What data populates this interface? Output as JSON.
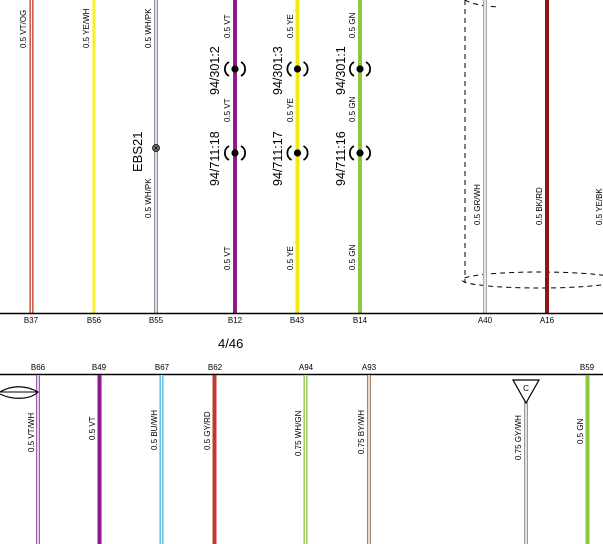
{
  "top": {
    "wires": [
      {
        "id": "b37",
        "label": "0.5 VT/OG",
        "pin": "B37",
        "color": "#c0392b",
        "stripe": "#ffffff"
      },
      {
        "id": "b56",
        "label": "0.5 YE/WH",
        "pin": "B56",
        "color": "#f7ee2e",
        "stripe": ""
      },
      {
        "id": "b55",
        "label_top": "0.5 WH/PK",
        "label_bottom": "0.5 WH/PK",
        "pin": "B55",
        "color": "#9a8aa5",
        "stripe": "#ffffff",
        "splice": "EBS21"
      },
      {
        "id": "b12",
        "label_top": "0.5 VT",
        "label_mid": "0.5 VT",
        "label_bottom": "0.5 VT",
        "pin": "B12",
        "color": "#8e1a8e",
        "conn_upper": "94/301:2",
        "conn_lower": "94/711:18"
      },
      {
        "id": "b43",
        "label_top": "0.5 YE",
        "label_mid": "0.5 YE",
        "label_bottom": "0.5 YE",
        "pin": "B43",
        "color": "#f2ea10",
        "conn_upper": "94/301:3",
        "conn_lower": "94/711:17"
      },
      {
        "id": "b14",
        "label_top": "0.5 GN",
        "label_mid": "0.5 GN",
        "label_bottom": "0.5 GN",
        "pin": "B14",
        "color": "#8dc63f",
        "conn_upper": "94/301:1",
        "conn_lower": "94/711:16"
      },
      {
        "id": "a40",
        "label": "0.5 GR/WH",
        "pin": "A40",
        "color": "#aaaaaa",
        "stripe": "#ffffff"
      },
      {
        "id": "a16",
        "label": "0.5 BK/RD",
        "pin": "A16",
        "color": "#8b1515",
        "stripe": ""
      },
      {
        "id": "a15",
        "label": "0.5 YE/BK",
        "pin": "",
        "color": "#f2ea10",
        "stripe": ""
      }
    ],
    "page_ref": "4/46"
  },
  "bottom": {
    "wires": [
      {
        "id": "b66",
        "label": "0.5 VT/WH",
        "pin": "B66",
        "color": "#a05ab0",
        "stripe": "#ffffff"
      },
      {
        "id": "b49",
        "label": "0.5 VT",
        "pin": "B49",
        "color": "#8e1a8e",
        "stripe": ""
      },
      {
        "id": "b67",
        "label": "0.5 BU/WH",
        "pin": "B67",
        "color": "#3fb6e0",
        "stripe": "#ffffff"
      },
      {
        "id": "b62",
        "label": "0.5 GY/RD",
        "pin": "B62",
        "color": "#c0392b",
        "stripe": ""
      },
      {
        "id": "a94",
        "label": "0.75 WH/GN",
        "pin": "A94",
        "color": "#8dc63f",
        "stripe": "#ffffff"
      },
      {
        "id": "a93",
        "label": "0.75 BY/WH",
        "pin": "A93",
        "color": "#a0826a",
        "stripe": "#ffffff"
      },
      {
        "id": "gy",
        "label": "0.75 GY/WH",
        "pin": "",
        "color": "#999999",
        "stripe": "#ffffff",
        "ground": "C"
      },
      {
        "id": "b59",
        "label": "0.5 GN",
        "pin": "B59",
        "color": "#8dc63f",
        "stripe": ""
      }
    ]
  }
}
